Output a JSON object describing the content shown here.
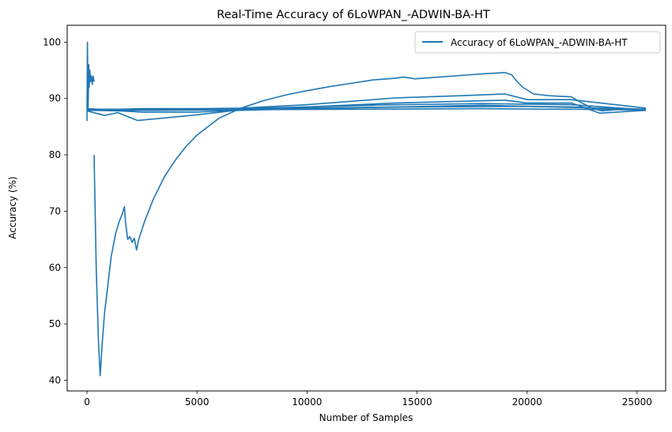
{
  "chart_data": {
    "type": "line",
    "title": "Real-Time Accuracy of 6LoWPAN_-ADWIN-BA-HT",
    "xlabel": "Number of Samples",
    "ylabel": "Accuracy (%)",
    "xlim": [
      -900,
      26300
    ],
    "ylim": [
      38.1,
      103.0
    ],
    "xticks": [
      0,
      5000,
      10000,
      15000,
      20000,
      25000
    ],
    "yticks": [
      40,
      50,
      60,
      70,
      80,
      90,
      100
    ],
    "grid": false,
    "legend_position": "top-right",
    "color": "#1f77b4",
    "series": [
      {
        "name": "Accuracy of 6LoWPAN_-ADWIN-BA-HT",
        "segments": [
          {
            "x": [
              0,
              20,
              50,
              80,
              100,
              130,
              160,
              200,
              240,
              280,
              320
            ],
            "y": [
              86,
              100,
              88,
              96,
              92,
              95,
              93,
              94,
              92.5,
              94,
              93
            ]
          },
          {
            "x": [
              320,
              420,
              520,
              600,
              700,
              800,
              950,
              1100,
              1300,
              1450,
              1600,
              1700,
              1750,
              1850,
              1950,
              2050,
              2150,
              2250,
              2350,
              2600,
              3000,
              3500,
              4000,
              4500,
              5000,
              6000,
              7000,
              8000,
              9000,
              10000,
              11000,
              12000,
              13000,
              14000,
              14400,
              14900,
              16000,
              17000,
              18000,
              19000,
              19300,
              19500,
              19800,
              20300,
              21000,
              21500,
              22000,
              22500,
              23000,
              23400,
              24000,
              25400
            ],
            "y": [
              80,
              60,
              47,
              40.8,
              47,
              52,
              57,
              62,
              66,
              68,
              69.5,
              70.8,
              68,
              65,
              65.5,
              64.5,
              65.2,
              63.1,
              65,
              68,
              72,
              76,
              79,
              81.5,
              83.5,
              86.5,
              88.3,
              89.6,
              90.6,
              91.4,
              92.1,
              92.7,
              93.3,
              93.6,
              93.8,
              93.5,
              93.8,
              94.1,
              94.4,
              94.6,
              94.2,
              93.2,
              92,
              90.8,
              90.5,
              90.4,
              90.3,
              89.2,
              88.2,
              87.8,
              88,
              88
            ]
          },
          {
            "x": [
              0,
              500,
              1500,
              2500,
              5000,
              7000,
              10000,
              14000,
              17000,
              19000,
              20000,
              22000,
              25400
            ],
            "y": [
              88.2,
              88.1,
              88.1,
              88.2,
              88.2,
              88.3,
              88.9,
              90.1,
              90.5,
              90.8,
              89.8,
              89.8,
              88.3
            ]
          },
          {
            "x": [
              0,
              800,
              1400,
              2300,
              5000,
              7000,
              10000,
              14000,
              18000,
              19000,
              20000,
              22000,
              23300,
              25400
            ],
            "y": [
              87.8,
              87.0,
              87.5,
              86.1,
              87.1,
              88.0,
              88.5,
              89.2,
              89.6,
              89.7,
              89.2,
              89.2,
              87.4,
              87.9
            ]
          },
          {
            "x": [
              0,
              2000,
              5000,
              7000,
              10000,
              14000,
              18000,
              20000,
              22000,
              25400
            ],
            "y": [
              88.0,
              88.0,
              88.1,
              88.2,
              88.5,
              88.9,
              89.1,
              89.0,
              88.9,
              88.0
            ]
          },
          {
            "x": [
              0,
              1500,
              2500,
              5000,
              7000,
              10000,
              14000,
              18000,
              20000,
              22000,
              25400
            ],
            "y": [
              87.9,
              87.8,
              87.6,
              87.6,
              87.9,
              88.2,
              88.5,
              88.8,
              88.6,
              88.5,
              87.9
            ]
          },
          {
            "x": [
              0,
              3000,
              7000,
              10000,
              15000,
              20000,
              25400
            ],
            "y": [
              88.1,
              88.0,
              88.1,
              88.3,
              88.5,
              88.6,
              88.1
            ]
          },
          {
            "x": [
              0,
              3000,
              7000,
              12000,
              18000,
              25400
            ],
            "y": [
              87.9,
              87.9,
              88.0,
              88.1,
              88.2,
              88.0
            ]
          }
        ]
      }
    ]
  }
}
